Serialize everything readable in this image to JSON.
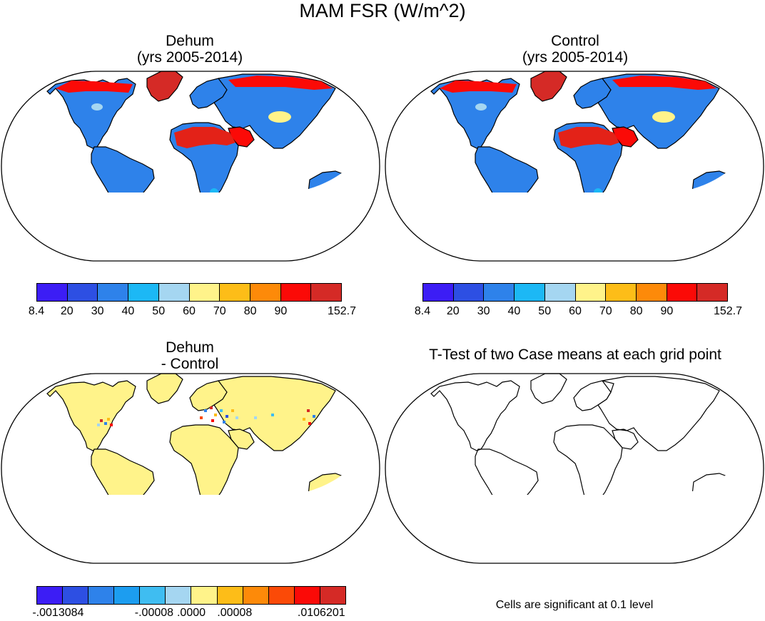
{
  "title": "MAM FSR (W/m^2)",
  "panels": {
    "dehum": {
      "title_line1": "Dehum",
      "title_line2": "(yrs 2005-2014)"
    },
    "control": {
      "title_line1": "Control",
      "title_line2": "(yrs 2005-2014)"
    },
    "diff": {
      "title_line1": "Dehum",
      "title_line2": "- Control"
    },
    "ttest": {
      "title_line1": "T-Test of two Case means at each grid point"
    }
  },
  "colorbar_main": {
    "colors": [
      "#3c1df5",
      "#2d4fe3",
      "#2e82ea",
      "#1cb8f5",
      "#a5d6f1",
      "#fff38a",
      "#fdbd18",
      "#fd8a09",
      "#fb0a07",
      "#d52a26"
    ],
    "labels": [
      "8.4",
      "20",
      "30",
      "40",
      "50",
      "60",
      "70",
      "80",
      "90",
      "152.7"
    ]
  },
  "colorbar_diff": {
    "colors": [
      "#3c1df5",
      "#2d4fe3",
      "#2e82ea",
      "#1c9df0",
      "#3fbdf1",
      "#a5d6f1",
      "#fff38a",
      "#fdbd18",
      "#fd8a09",
      "#fb4a07",
      "#fb0a07",
      "#d52a26"
    ],
    "labels": [
      "-.0013084",
      "-.00008",
      ".0000",
      ".00008",
      ".0106201"
    ]
  },
  "ttest_note": "Cells are significant at 0.1 level",
  "colors": {
    "ocean": "#ffffff",
    "land_blue": "#2e82ea",
    "land_cyan": "#1cb8f5",
    "desert_red": "#e32218",
    "arctic_red": "#d52a26",
    "diff_land": "#fff38a"
  }
}
